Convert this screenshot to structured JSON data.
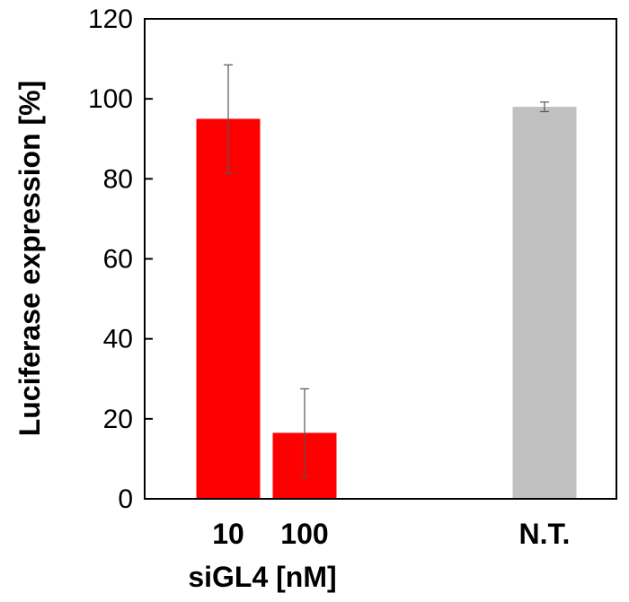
{
  "chart_data": {
    "type": "bar",
    "categories": [
      "10",
      "100",
      "N.T."
    ],
    "values": [
      95,
      16.5,
      98
    ],
    "errors": [
      13.5,
      11,
      1.2
    ],
    "colors": [
      "#ff0000",
      "#ff0000",
      "#c0c0c0"
    ],
    "ylabel": "Luciferase expression [%]",
    "xlabel": "siGL4 [nM]",
    "ylim": [
      0,
      120
    ],
    "yticks": [
      0,
      20,
      40,
      60,
      80,
      100,
      120
    ],
    "grid": false
  }
}
